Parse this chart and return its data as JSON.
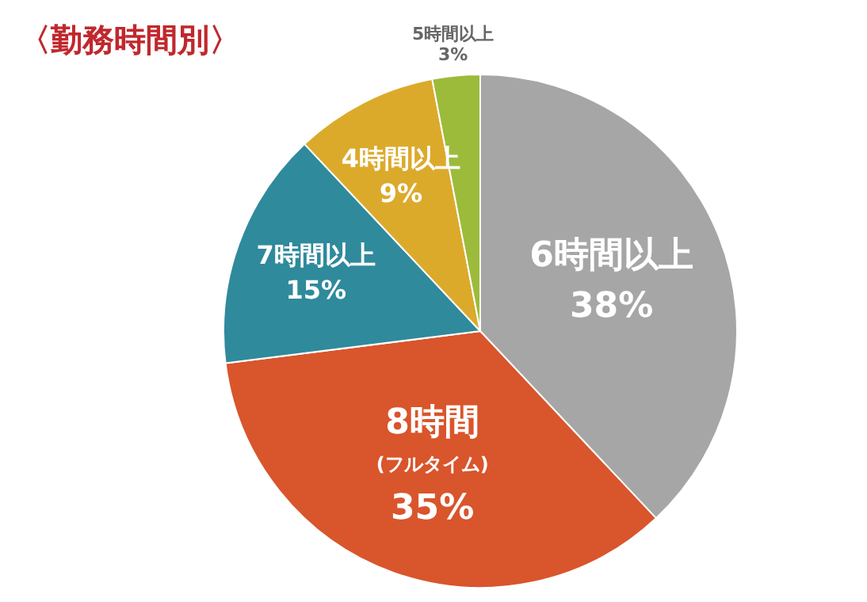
{
  "chart_data": {
    "type": "pie",
    "title": "〈勤務時間別〉",
    "categories": [
      "6時間以上",
      "8時間\n(フルタイム)",
      "7時間以上",
      "4時間以上",
      "5時間以上"
    ],
    "values": [
      38,
      35,
      15,
      9,
      3
    ],
    "value_labels": [
      "38%",
      "35%",
      "15%",
      "9%",
      "3%"
    ],
    "colors": [
      "#a6a6a6",
      "#d9552c",
      "#2f8a9c",
      "#dcaa2b",
      "#9cbb3b"
    ],
    "legend": false
  }
}
